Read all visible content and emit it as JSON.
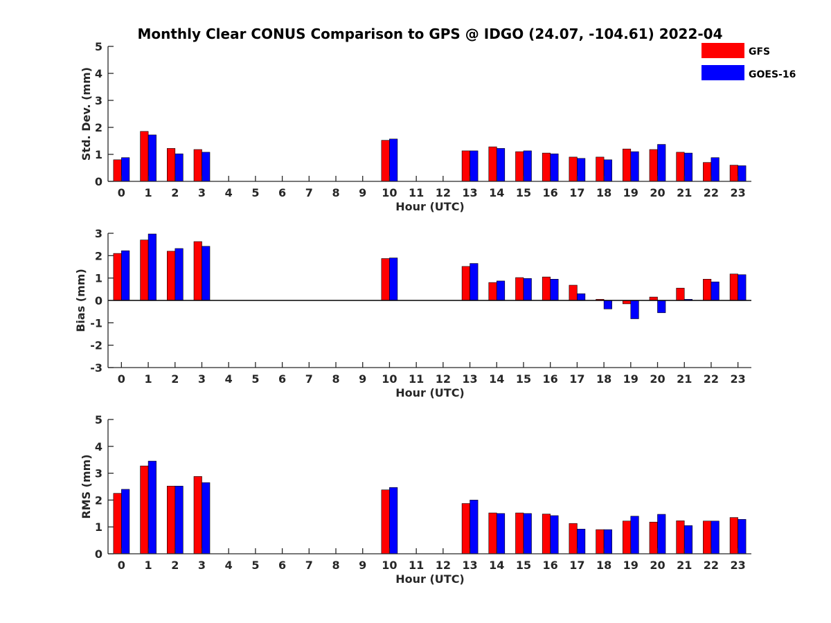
{
  "title": "Monthly Clear CONUS Comparison to GPS @ IDGO (24.07, -104.61) 2022-04",
  "colors": {
    "GFS": "#ff0000",
    "GOES-16": "#0000ff",
    "axis": "#262626"
  },
  "legend": {
    "placement": "top-right",
    "entries": [
      "GFS",
      "GOES-16"
    ]
  },
  "chart_data": [
    {
      "type": "bar",
      "categories": [
        "0",
        "1",
        "2",
        "3",
        "4",
        "5",
        "6",
        "7",
        "8",
        "9",
        "10",
        "11",
        "12",
        "13",
        "14",
        "15",
        "16",
        "17",
        "18",
        "19",
        "20",
        "21",
        "22",
        "23"
      ],
      "xlabel": "Hour (UTC)",
      "ylabel": "Std. Dev. (mm)",
      "ylim": [
        0,
        5
      ],
      "yticks": [
        0,
        1,
        2,
        3,
        4,
        5
      ],
      "series": [
        {
          "name": "GFS",
          "values": [
            0.8,
            1.85,
            1.22,
            1.18,
            null,
            null,
            null,
            null,
            null,
            null,
            1.52,
            null,
            null,
            1.13,
            1.28,
            1.1,
            1.05,
            0.9,
            0.9,
            1.2,
            1.18,
            1.08,
            0.7,
            0.6
          ]
        },
        {
          "name": "GOES-16",
          "values": [
            0.88,
            1.72,
            1.02,
            1.08,
            null,
            null,
            null,
            null,
            null,
            null,
            1.57,
            null,
            null,
            1.13,
            1.22,
            1.13,
            1.02,
            0.85,
            0.8,
            1.1,
            1.37,
            1.05,
            0.88,
            0.58
          ]
        }
      ]
    },
    {
      "type": "bar",
      "categories": [
        "0",
        "1",
        "2",
        "3",
        "4",
        "5",
        "6",
        "7",
        "8",
        "9",
        "10",
        "11",
        "12",
        "13",
        "14",
        "15",
        "16",
        "17",
        "18",
        "19",
        "20",
        "21",
        "22",
        "23"
      ],
      "xlabel": "Hour (UTC)",
      "ylabel": "Bias (mm)",
      "ylim": [
        -3,
        3
      ],
      "yticks": [
        -3,
        -2,
        -1,
        0,
        1,
        2,
        3
      ],
      "series": [
        {
          "name": "GFS",
          "values": [
            2.1,
            2.7,
            2.2,
            2.63,
            null,
            null,
            null,
            null,
            null,
            null,
            1.87,
            null,
            null,
            1.52,
            0.8,
            1.02,
            1.05,
            0.68,
            0.05,
            -0.15,
            0.15,
            0.55,
            0.95,
            1.18
          ]
        },
        {
          "name": "GOES-16",
          "values": [
            2.22,
            2.97,
            2.32,
            2.42,
            null,
            null,
            null,
            null,
            null,
            null,
            1.9,
            null,
            null,
            1.65,
            0.87,
            0.98,
            0.95,
            0.3,
            -0.38,
            -0.82,
            -0.55,
            0.05,
            0.83,
            1.15
          ]
        }
      ]
    },
    {
      "type": "bar",
      "categories": [
        "0",
        "1",
        "2",
        "3",
        "4",
        "5",
        "6",
        "7",
        "8",
        "9",
        "10",
        "11",
        "12",
        "13",
        "14",
        "15",
        "16",
        "17",
        "18",
        "19",
        "20",
        "21",
        "22",
        "23"
      ],
      "xlabel": "Hour (UTC)",
      "ylabel": "RMS (mm)",
      "ylim": [
        0,
        5
      ],
      "yticks": [
        0,
        1,
        2,
        3,
        4,
        5
      ],
      "series": [
        {
          "name": "GFS",
          "values": [
            2.25,
            3.27,
            2.52,
            2.88,
            null,
            null,
            null,
            null,
            null,
            null,
            2.38,
            null,
            null,
            1.87,
            1.52,
            1.52,
            1.48,
            1.13,
            0.9,
            1.22,
            1.18,
            1.23,
            1.22,
            1.35
          ]
        },
        {
          "name": "GOES-16",
          "values": [
            2.4,
            3.45,
            2.52,
            2.65,
            null,
            null,
            null,
            null,
            null,
            null,
            2.47,
            null,
            null,
            2.0,
            1.5,
            1.5,
            1.42,
            0.92,
            0.9,
            1.4,
            1.47,
            1.05,
            1.22,
            1.28
          ]
        }
      ]
    }
  ]
}
